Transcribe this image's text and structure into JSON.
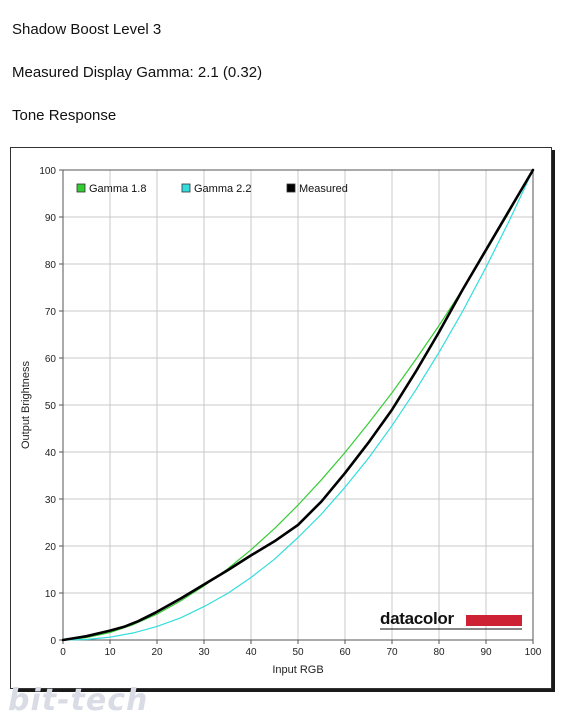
{
  "headings": {
    "title": "Shadow Boost Level 3",
    "gamma_line": "Measured Display Gamma: 2.1 (0.32)",
    "section": "Tone Response"
  },
  "chart_data": {
    "type": "line",
    "xlabel": "Input RGB",
    "ylabel": "Output Brightness",
    "xlim": [
      0,
      100
    ],
    "ylim": [
      0,
      100
    ],
    "x_ticks": [
      0,
      10,
      20,
      30,
      40,
      50,
      60,
      70,
      80,
      90,
      100
    ],
    "y_ticks": [
      0,
      10,
      20,
      30,
      40,
      50,
      60,
      70,
      80,
      90,
      100
    ],
    "grid": true,
    "legend_position": "top-left",
    "series": [
      {
        "name": "Gamma 1.8",
        "color": "#33cc33",
        "x": [
          0,
          5,
          10,
          15,
          20,
          25,
          30,
          35,
          40,
          45,
          50,
          55,
          60,
          65,
          70,
          75,
          80,
          85,
          90,
          95,
          100
        ],
        "y": [
          0,
          0.5,
          1.6,
          3.3,
          5.5,
          8.3,
          11.5,
          15.1,
          19.2,
          23.7,
          28.7,
          34.1,
          39.9,
          46.1,
          52.6,
          59.6,
          66.9,
          74.6,
          82.7,
          91.2,
          100
        ]
      },
      {
        "name": "Gamma 2.2",
        "color": "#33dddd",
        "x": [
          0,
          5,
          10,
          15,
          20,
          25,
          30,
          35,
          40,
          45,
          50,
          55,
          60,
          65,
          70,
          75,
          80,
          85,
          90,
          95,
          100
        ],
        "y": [
          0,
          0.1,
          0.6,
          1.5,
          2.9,
          4.7,
          7.1,
          9.9,
          13.3,
          17.2,
          21.8,
          26.8,
          32.5,
          38.7,
          45.6,
          53.1,
          61.2,
          69.9,
          79.3,
          89.3,
          100
        ]
      },
      {
        "name": "Measured",
        "color": "#000000",
        "x": [
          0,
          5,
          10,
          13,
          16,
          20,
          25,
          30,
          35,
          40,
          45,
          50,
          55,
          60,
          65,
          70,
          75,
          80,
          85,
          90,
          95,
          100
        ],
        "y": [
          0,
          0.8,
          2.0,
          2.8,
          4.0,
          6.0,
          8.8,
          11.8,
          14.8,
          18.0,
          21.0,
          24.5,
          29.5,
          35.5,
          42.0,
          49.0,
          57.0,
          65.5,
          74.5,
          83.0,
          91.5,
          100
        ]
      }
    ]
  },
  "brand": {
    "name": "datacolor",
    "bar_color": "#cc2233"
  },
  "watermark": "bit-tech"
}
